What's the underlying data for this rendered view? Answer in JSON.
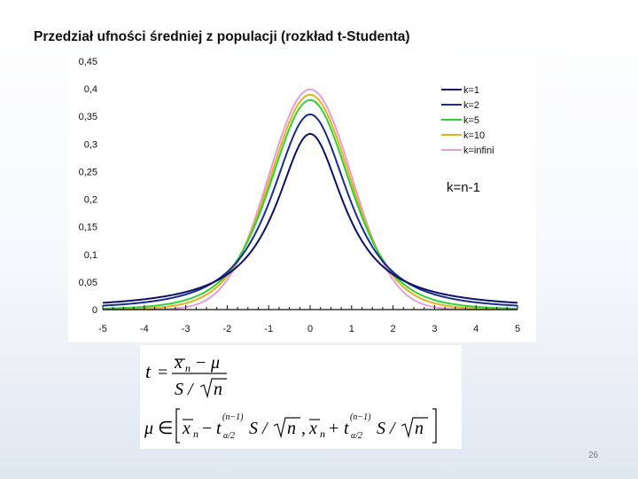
{
  "title": "Przedział ufności średniej z populacji (rozkład t-Studenta)",
  "page_number": "26",
  "chart_data": {
    "type": "line",
    "title": "",
    "xlabel": "",
    "ylabel": "",
    "xlim": [
      -5,
      5
    ],
    "ylim": [
      0,
      0.45
    ],
    "x_ticks": [
      "-5",
      "-4",
      "-3",
      "-2",
      "-1",
      "0",
      "1",
      "2",
      "3",
      "4",
      "5"
    ],
    "y_ticks": [
      "0",
      "0,05",
      "0,1",
      "0,15",
      "0,2",
      "0,25",
      "0,3",
      "0,35",
      "0,4",
      "0,45"
    ],
    "grid": false,
    "legend_position": "top-right",
    "annotation": "k=n-1",
    "series": [
      {
        "name": "k=1",
        "color": "#0e1166",
        "df": 1,
        "x": [
          -5,
          -4,
          -3,
          -2,
          -1,
          0,
          1,
          2,
          3,
          4,
          5
        ],
        "values": [
          0.0122,
          0.0187,
          0.0318,
          0.0637,
          0.1592,
          0.3183,
          0.1592,
          0.0637,
          0.0318,
          0.0187,
          0.0122
        ]
      },
      {
        "name": "k=2",
        "color": "#1b2c8f",
        "df": 2,
        "x": [
          -5,
          -4,
          -3,
          -2,
          -1,
          0,
          1,
          2,
          3,
          4,
          5
        ],
        "values": [
          0.0071,
          0.0131,
          0.0275,
          0.068,
          0.1925,
          0.3536,
          0.1925,
          0.068,
          0.0275,
          0.0131,
          0.0071
        ]
      },
      {
        "name": "k=5",
        "color": "#2fd13a",
        "df": 5,
        "x": [
          -5,
          -4,
          -3,
          -2,
          -1,
          0,
          1,
          2,
          3,
          4,
          5
        ],
        "values": [
          0.0018,
          0.0051,
          0.0173,
          0.0651,
          0.2197,
          0.3796,
          0.2197,
          0.0651,
          0.0173,
          0.0051,
          0.0018
        ]
      },
      {
        "name": "k=10",
        "color": "#e3b21c",
        "df": 10,
        "x": [
          -5,
          -4,
          -3,
          -2,
          -1,
          0,
          1,
          2,
          3,
          4,
          5
        ],
        "values": [
          0.0004,
          0.002,
          0.0114,
          0.0611,
          0.2304,
          0.3891,
          0.2304,
          0.0611,
          0.0114,
          0.002,
          0.0004
        ]
      },
      {
        "name": "k=infini",
        "color": "#e39fd6",
        "df": "infinity",
        "x": [
          -5,
          -4,
          -3,
          -2,
          -1,
          0,
          1,
          2,
          3,
          4,
          5
        ],
        "values": [
          1.5e-06,
          0.0001,
          0.0044,
          0.054,
          0.242,
          0.3989,
          0.242,
          0.054,
          0.0044,
          0.0001,
          1.5e-06
        ]
      }
    ]
  },
  "formulas": {
    "t_stat": {
      "lhs": "t",
      "eq": "=",
      "num_var": "x",
      "num_sub": "n",
      "minus": "−",
      "mu": "μ",
      "den": "S /",
      "root": "n"
    },
    "interval": {
      "mu": "μ",
      "in": "∈",
      "x": "x",
      "n": "n",
      "t": "t",
      "sub": "α/2",
      "sup": "(n−1)",
      "minus": "−",
      "plus": "+",
      "comma": ",",
      "S_slash": "S /"
    }
  }
}
